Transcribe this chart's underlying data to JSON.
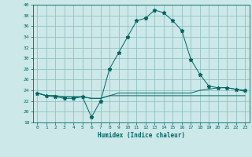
{
  "title": "",
  "xlabel": "Humidex (Indice chaleur)",
  "bg_color": "#cce8e8",
  "grid_color": "#88bbbb",
  "line_color": "#006666",
  "xlim": [
    -0.5,
    23.5
  ],
  "ylim": [
    18,
    40
  ],
  "yticks": [
    18,
    20,
    22,
    24,
    26,
    28,
    30,
    32,
    34,
    36,
    38,
    40
  ],
  "xticks": [
    0,
    1,
    2,
    3,
    4,
    5,
    6,
    7,
    8,
    9,
    10,
    11,
    12,
    13,
    14,
    15,
    16,
    17,
    18,
    19,
    20,
    21,
    22,
    23
  ],
  "series1": [
    23.5,
    23.0,
    23.0,
    22.8,
    22.8,
    22.8,
    22.5,
    22.5,
    23.0,
    23.0,
    23.0,
    23.0,
    23.0,
    23.0,
    23.0,
    23.0,
    23.0,
    23.0,
    23.0,
    23.0,
    23.0,
    23.0,
    23.0,
    23.0
  ],
  "series2": [
    23.5,
    23.0,
    22.8,
    22.5,
    22.5,
    22.8,
    19.0,
    22.0,
    28.0,
    31.0,
    34.0,
    37.0,
    37.5,
    39.0,
    38.5,
    37.0,
    35.2,
    29.8,
    27.0,
    24.8,
    24.5,
    24.5,
    24.2,
    24.0
  ],
  "series3": [
    23.5,
    23.0,
    23.0,
    22.8,
    22.8,
    22.8,
    22.5,
    22.5,
    23.0,
    23.5,
    23.5,
    23.5,
    23.5,
    23.5,
    23.5,
    23.5,
    23.5,
    23.5,
    24.0,
    24.2,
    24.5,
    24.5,
    24.2,
    23.8
  ]
}
